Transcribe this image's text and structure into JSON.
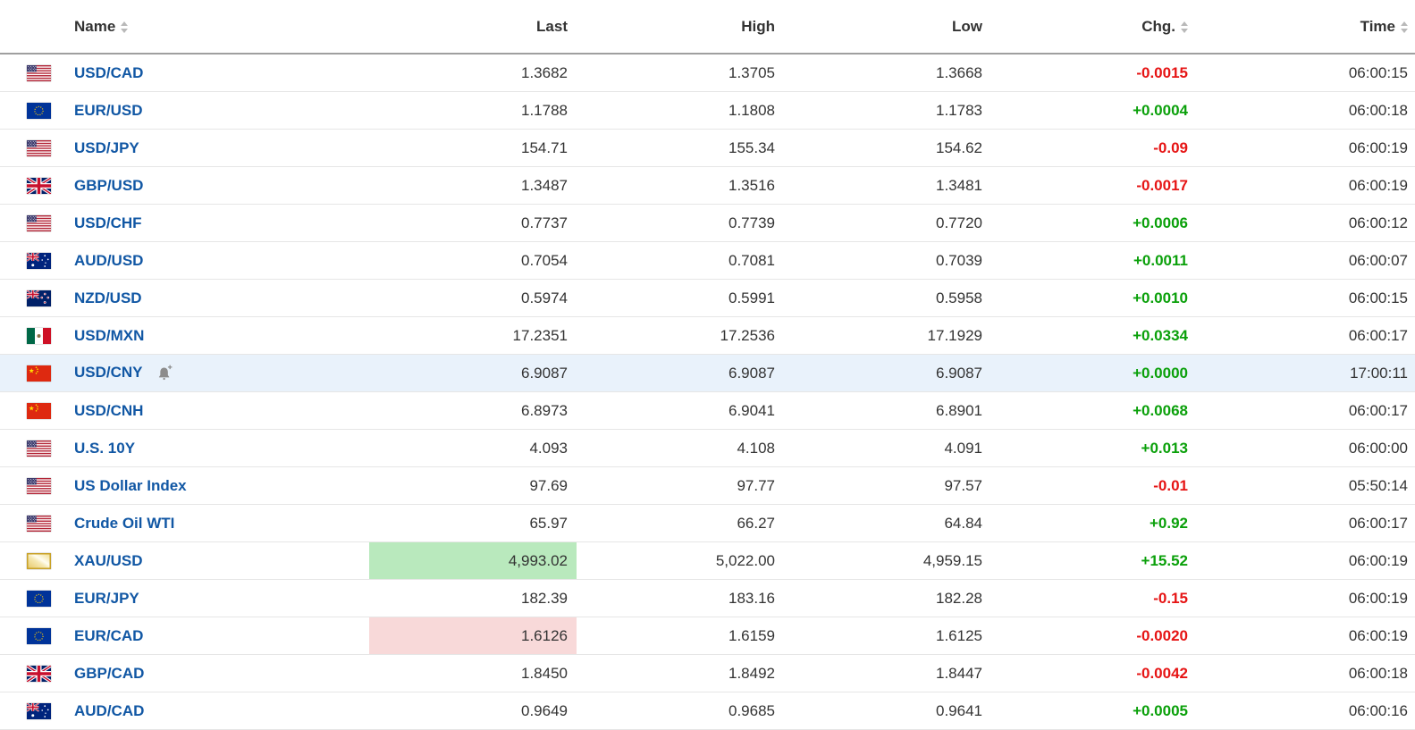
{
  "colors": {
    "up": "#0aa00a",
    "down": "#e61414",
    "link": "#1157a4",
    "row_highlight": "#e9f2fb",
    "flash_up": "#b9e9bd",
    "flash_down": "#f8d9d9"
  },
  "table": {
    "columns": [
      {
        "label": "Name",
        "sortable": true
      },
      {
        "label": "Last",
        "sortable": false
      },
      {
        "label": "High",
        "sortable": false
      },
      {
        "label": "Low",
        "sortable": false
      },
      {
        "label": "Chg.",
        "sortable": true
      },
      {
        "label": "Time",
        "sortable": true
      }
    ],
    "rows": [
      {
        "name": "USD/CAD",
        "flag": "us",
        "last": "1.3682",
        "high": "1.3705",
        "low": "1.3668",
        "chg": "-0.0015",
        "dir": "down",
        "time": "06:00:15"
      },
      {
        "name": "EUR/USD",
        "flag": "eu",
        "last": "1.1788",
        "high": "1.1808",
        "low": "1.1783",
        "chg": "+0.0004",
        "dir": "up",
        "time": "06:00:18"
      },
      {
        "name": "USD/JPY",
        "flag": "us",
        "last": "154.71",
        "high": "155.34",
        "low": "154.62",
        "chg": "-0.09",
        "dir": "down",
        "time": "06:00:19"
      },
      {
        "name": "GBP/USD",
        "flag": "gb",
        "last": "1.3487",
        "high": "1.3516",
        "low": "1.3481",
        "chg": "-0.0017",
        "dir": "down",
        "time": "06:00:19"
      },
      {
        "name": "USD/CHF",
        "flag": "us",
        "last": "0.7737",
        "high": "0.7739",
        "low": "0.7720",
        "chg": "+0.0006",
        "dir": "up",
        "time": "06:00:12"
      },
      {
        "name": "AUD/USD",
        "flag": "au",
        "last": "0.7054",
        "high": "0.7081",
        "low": "0.7039",
        "chg": "+0.0011",
        "dir": "up",
        "time": "06:00:07"
      },
      {
        "name": "NZD/USD",
        "flag": "nz",
        "last": "0.5974",
        "high": "0.5991",
        "low": "0.5958",
        "chg": "+0.0010",
        "dir": "up",
        "time": "06:00:15"
      },
      {
        "name": "USD/MXN",
        "flag": "mx",
        "last": "17.2351",
        "high": "17.2536",
        "low": "17.1929",
        "chg": "+0.0334",
        "dir": "up",
        "time": "06:00:17"
      },
      {
        "name": "USD/CNY",
        "flag": "cn",
        "last": "6.9087",
        "high": "6.9087",
        "low": "6.9087",
        "chg": "+0.0000",
        "dir": "up",
        "time": "17:00:11",
        "selected": true,
        "alert": true
      },
      {
        "name": "USD/CNH",
        "flag": "cn",
        "last": "6.8973",
        "high": "6.9041",
        "low": "6.8901",
        "chg": "+0.0068",
        "dir": "up",
        "time": "06:00:17"
      },
      {
        "name": "U.S. 10Y",
        "flag": "us",
        "last": "4.093",
        "high": "4.108",
        "low": "4.091",
        "chg": "+0.013",
        "dir": "up",
        "time": "06:00:00"
      },
      {
        "name": "US Dollar Index",
        "flag": "us",
        "last": "97.69",
        "high": "97.77",
        "low": "97.57",
        "chg": "-0.01",
        "dir": "down",
        "time": "05:50:14"
      },
      {
        "name": "Crude Oil WTI",
        "flag": "us",
        "last": "65.97",
        "high": "66.27",
        "low": "64.84",
        "chg": "+0.92",
        "dir": "up",
        "time": "06:00:17"
      },
      {
        "name": "XAU/USD",
        "flag": "gold",
        "last": "4,993.02",
        "high": "5,022.00",
        "low": "4,959.15",
        "chg": "+15.52",
        "dir": "up",
        "time": "06:00:19",
        "last_flash": "up"
      },
      {
        "name": "EUR/JPY",
        "flag": "eu",
        "last": "182.39",
        "high": "183.16",
        "low": "182.28",
        "chg": "-0.15",
        "dir": "down",
        "time": "06:00:19"
      },
      {
        "name": "EUR/CAD",
        "flag": "eu",
        "last": "1.6126",
        "high": "1.6159",
        "low": "1.6125",
        "chg": "-0.0020",
        "dir": "down",
        "time": "06:00:19",
        "last_flash": "down"
      },
      {
        "name": "GBP/CAD",
        "flag": "gb",
        "last": "1.8450",
        "high": "1.8492",
        "low": "1.8447",
        "chg": "-0.0042",
        "dir": "down",
        "time": "06:00:18"
      },
      {
        "name": "AUD/CAD",
        "flag": "au",
        "last": "0.9649",
        "high": "0.9685",
        "low": "0.9641",
        "chg": "+0.0005",
        "dir": "up",
        "time": "06:00:16"
      }
    ]
  }
}
